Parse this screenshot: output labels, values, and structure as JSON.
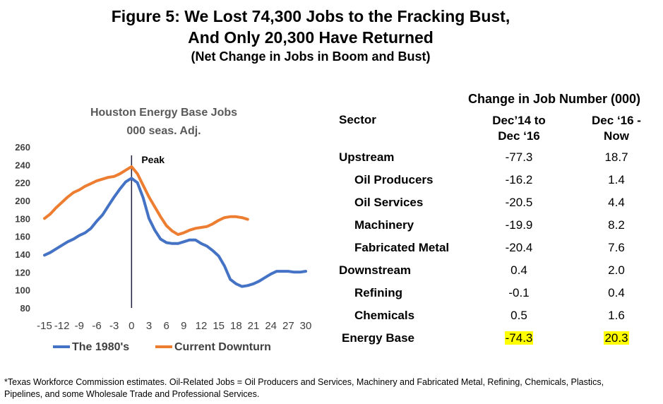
{
  "figure": {
    "title_line1": "Figure 5: We Lost 74,300 Jobs to the Fracking Bust,",
    "title_line2": "And Only 20,300 Have Returned",
    "subtitle": "(Net Change in Jobs in Boom and Bust)"
  },
  "chart_data": [
    {
      "type": "line",
      "title": "Houston Energy Base Jobs",
      "subtitle": "000 seas. Adj.",
      "ylim": [
        80,
        260
      ],
      "yticks": [
        80,
        100,
        120,
        140,
        160,
        180,
        200,
        220,
        240,
        260
      ],
      "xlim": [
        -15,
        30
      ],
      "xticks": [
        -15,
        -12,
        -9,
        -6,
        -3,
        0,
        3,
        6,
        9,
        12,
        15,
        18,
        21,
        24,
        27,
        30
      ],
      "annotation": "Peak",
      "legend_position": "bottom",
      "grid": false,
      "series": [
        {
          "name": "The 1980's",
          "color": "#4472C4",
          "x": [
            -15,
            -14,
            -13,
            -12,
            -11,
            -10,
            -9,
            -8,
            -7,
            -6,
            -5,
            -4,
            -3,
            -2,
            -1,
            0,
            1,
            2,
            3,
            4,
            5,
            6,
            7,
            8,
            9,
            10,
            11,
            12,
            13,
            14,
            15,
            16,
            17,
            18,
            19,
            20,
            21,
            22,
            23,
            24,
            25,
            26,
            27,
            28,
            29,
            30
          ],
          "y": [
            139,
            142,
            146,
            150,
            154,
            157,
            161,
            164,
            169,
            177,
            184,
            194,
            204,
            213,
            221,
            225,
            220,
            203,
            180,
            167,
            157,
            153,
            152,
            152,
            154,
            156,
            156,
            152,
            149,
            144,
            138,
            127,
            112,
            107,
            104,
            105,
            107,
            110,
            114,
            118,
            121,
            121,
            121,
            120,
            120,
            121
          ]
        },
        {
          "name": "Current Downturn",
          "color": "#ED7D31",
          "x": [
            -15,
            -14,
            -13,
            -12,
            -11,
            -10,
            -9,
            -8,
            -7,
            -6,
            -5,
            -4,
            -3,
            -2,
            -1,
            0,
            1,
            2,
            3,
            4,
            5,
            6,
            7,
            8,
            9,
            10,
            11,
            12,
            13,
            14,
            15,
            16,
            17,
            18,
            19,
            20
          ],
          "y": [
            180,
            185,
            192,
            198,
            204,
            209,
            212,
            216,
            219,
            222,
            224,
            226,
            227,
            230,
            234,
            238,
            230,
            217,
            204,
            193,
            182,
            172,
            166,
            162,
            164,
            167,
            169,
            170,
            171,
            174,
            178,
            181,
            182,
            182,
            181,
            179
          ]
        }
      ]
    },
    {
      "type": "table",
      "header_title": "Change in Job Number (000)",
      "col_sector": "Sector",
      "col_a": [
        "Dec’14 to",
        "Dec ‘16"
      ],
      "col_b": [
        "Dec ‘16 -",
        "Now"
      ],
      "rows": [
        {
          "sector": "Upstream",
          "a": "-77.3",
          "b": "18.7",
          "indent": false
        },
        {
          "sector": "Oil Producers",
          "a": "-16.2",
          "b": "1.4",
          "indent": true
        },
        {
          "sector": "Oil Services",
          "a": "-20.5",
          "b": "4.4",
          "indent": true
        },
        {
          "sector": "Machinery",
          "a": "-19.9",
          "b": "8.2",
          "indent": true
        },
        {
          "sector": "Fabricated Metal",
          "a": "-20.4",
          "b": "7.6",
          "indent": true
        },
        {
          "sector": "Downstream",
          "a": "0.4",
          "b": "2.0",
          "indent": false
        },
        {
          "sector": "Refining",
          "a": "-0.1",
          "b": "0.4",
          "indent": true
        },
        {
          "sector": "Chemicals",
          "a": "0.5",
          "b": "1.6",
          "indent": true
        }
      ],
      "total": {
        "sector": "Energy Base",
        "a": "-74.3",
        "b": "20.3",
        "highlight": "#FFFF00"
      }
    }
  ],
  "footnote": {
    "line1": "*Texas Workforce Commission estimates. Oil-Related Jobs = Oil Producers and Services, Machinery and Fabricated Metal, Refining, Chemicals, Plastics,",
    "line2": "Pipelines, and some Wholesale Trade and Professional Services."
  }
}
